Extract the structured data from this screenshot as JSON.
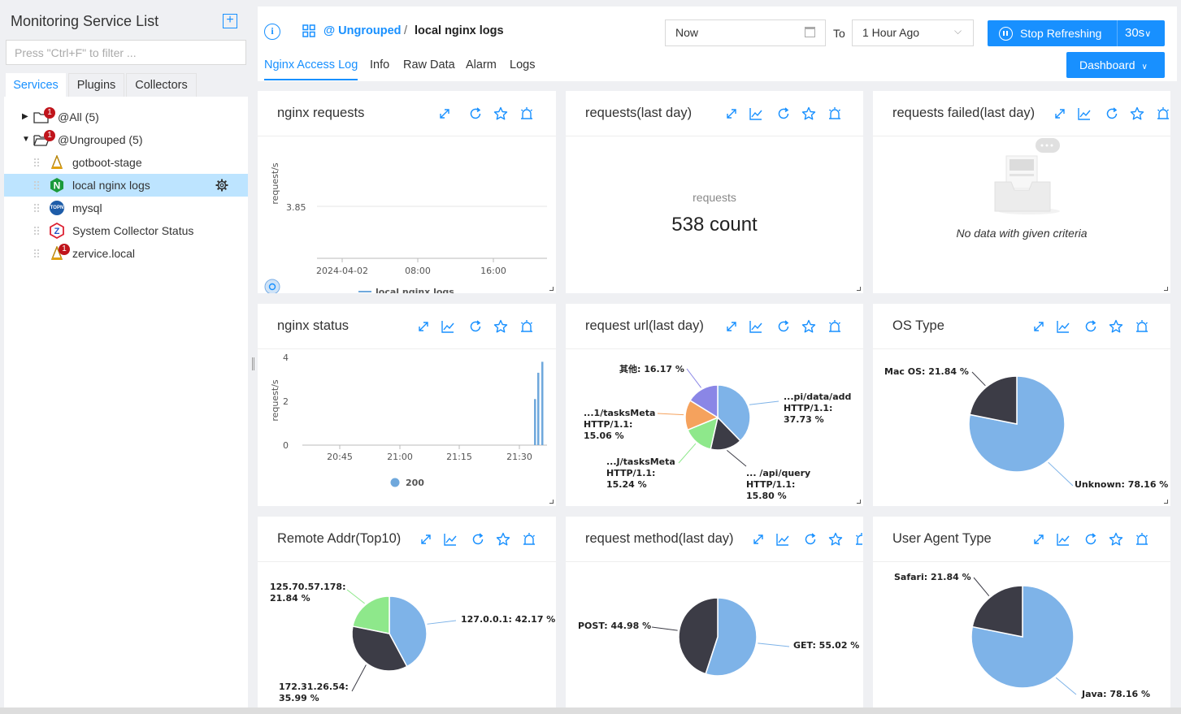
{
  "sidebar": {
    "title": "Monitoring Service List",
    "filter_placeholder": "Press \"Ctrl+F\" to filter ...",
    "tabs": [
      "Services",
      "Plugins",
      "Collectors"
    ],
    "tree": [
      {
        "label": "@All (5)",
        "badge": "1"
      },
      {
        "label": "@Ungrouped (5)",
        "badge": "1"
      },
      {
        "label": "gotboot-stage"
      },
      {
        "label": "local nginx logs"
      },
      {
        "label": "mysql"
      },
      {
        "label": "System Collector Status"
      },
      {
        "label": "zervice.local",
        "badge": "1"
      }
    ]
  },
  "header": {
    "crumb_group": "@ Ungrouped",
    "crumb_sep": "/",
    "crumb_current": "local nginx logs",
    "tabs": [
      "Nginx Access Log",
      "Info",
      "Raw Data",
      "Alarm",
      "Logs"
    ],
    "time_from": "Now",
    "to_label": "To",
    "time_to": "1 Hour Ago",
    "stop_refresh": "Stop Refreshing",
    "refresh_interval": "30s",
    "dashboard": "Dashboard"
  },
  "panels": {
    "nginx_requests": {
      "title": "nginx requests"
    },
    "requests_last_day": {
      "title": "requests(last day)",
      "metric_label": "requests",
      "metric_value": "538 count"
    },
    "requests_failed": {
      "title": "requests failed(last day)",
      "empty_text": "No data with given criteria"
    },
    "nginx_status": {
      "title": "nginx status"
    },
    "request_url": {
      "title": "request url(last day)"
    },
    "os_type": {
      "title": "OS Type"
    },
    "remote_addr": {
      "title": "Remote Addr(Top10)"
    },
    "request_method": {
      "title": "request method(last day)"
    },
    "user_agent": {
      "title": "User Agent Type"
    }
  },
  "chart_data": [
    {
      "id": "nginx_requests",
      "type": "line",
      "ylabel": "request/s",
      "y_ticks": [
        "3.85"
      ],
      "x_ticks": [
        "2024-04-02",
        "08:00",
        "16:00"
      ],
      "series": [
        {
          "name": "local nginx logs",
          "values": []
        }
      ],
      "color": "#6fa8dc"
    },
    {
      "id": "nginx_status",
      "type": "bar",
      "ylabel": "request/s",
      "ylim": [
        0,
        4
      ],
      "y_ticks": [
        "0",
        "2",
        "4"
      ],
      "x_ticks": [
        "20:45",
        "21:00",
        "21:15",
        "21:30"
      ],
      "series": [
        {
          "name": "200",
          "values": [
            2.1,
            3.3,
            3.8
          ]
        }
      ],
      "color": "#6fa8dc"
    },
    {
      "id": "request_url",
      "type": "pie",
      "slices": [
        {
          "label": "...pi/data/add HTTP/1.1: 37.73 %",
          "value": 37.73,
          "color": "#7eb3e8"
        },
        {
          "label": "... /api/query HTTP/1.1: 15.80 %",
          "value": 15.8,
          "color": "#3c3c46"
        },
        {
          "label": "...J/tasksMeta HTTP/1.1: 15.24 %",
          "value": 15.24,
          "color": "#8ee88b"
        },
        {
          "label": "...1/tasksMeta HTTP/1.1: 15.06 %",
          "value": 15.06,
          "color": "#f5a25d"
        },
        {
          "label": "其他: 16.17 %",
          "value": 16.17,
          "color": "#8a86e6"
        }
      ]
    },
    {
      "id": "os_type",
      "type": "pie",
      "slices": [
        {
          "label": "Unknown: 78.16 %",
          "value": 78.16,
          "color": "#7eb3e8"
        },
        {
          "label": "Mac OS: 21.84 %",
          "value": 21.84,
          "color": "#3c3c46"
        }
      ]
    },
    {
      "id": "remote_addr",
      "type": "pie",
      "slices": [
        {
          "label": "127.0.0.1: 42.17 %",
          "value": 42.17,
          "color": "#7eb3e8"
        },
        {
          "label": "172.31.26.54: 35.99 %",
          "value": 35.99,
          "color": "#3c3c46"
        },
        {
          "label": "125.70.57.178: 21.84 %",
          "value": 21.84,
          "color": "#8ee88b"
        }
      ]
    },
    {
      "id": "request_method",
      "type": "pie",
      "slices": [
        {
          "label": "GET: 55.02 %",
          "value": 55.02,
          "color": "#7eb3e8"
        },
        {
          "label": "POST: 44.98 %",
          "value": 44.98,
          "color": "#3c3c46"
        }
      ]
    },
    {
      "id": "user_agent",
      "type": "pie",
      "slices": [
        {
          "label": "Java: 78.16 %",
          "value": 78.16,
          "color": "#7eb3e8"
        },
        {
          "label": "Safari: 21.84 %",
          "value": 21.84,
          "color": "#3c3c46"
        }
      ]
    }
  ]
}
